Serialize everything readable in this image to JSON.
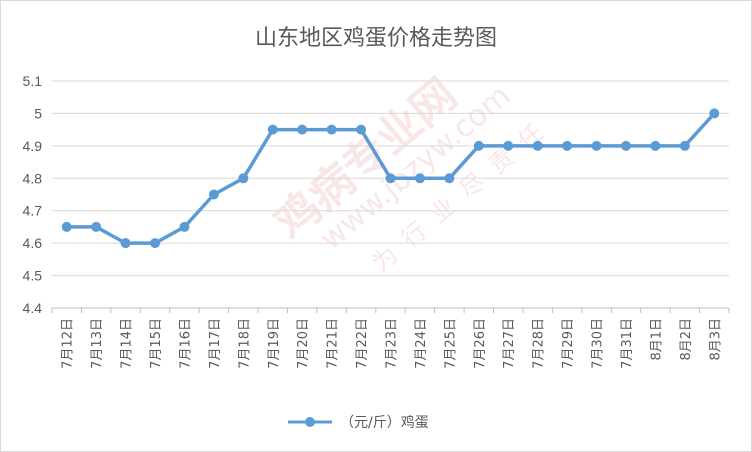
{
  "chart_data": {
    "type": "line",
    "title": "山东地区鸡蛋价格走势图",
    "categories": [
      "7月12日",
      "7月13日",
      "7月14日",
      "7月15日",
      "7月16日",
      "7月17日",
      "7月18日",
      "7月19日",
      "7月20日",
      "7月21日",
      "7月22日",
      "7月23日",
      "7月24日",
      "7月25日",
      "7月26日",
      "7月27日",
      "7月28日",
      "7月29日",
      "7月30日",
      "7月31日",
      "8月1日",
      "8月2日",
      "8月3日"
    ],
    "series": [
      {
        "name": "（元/斤）鸡蛋",
        "color": "#5b9bd5",
        "values": [
          4.65,
          4.65,
          4.6,
          4.6,
          4.65,
          4.75,
          4.8,
          4.95,
          4.95,
          4.95,
          4.95,
          4.8,
          4.8,
          4.8,
          4.9,
          4.9,
          4.9,
          4.9,
          4.9,
          4.9,
          4.9,
          4.9,
          5.0
        ]
      }
    ],
    "ylim": [
      4.4,
      5.1
    ],
    "yticks": [
      "4.4",
      "4.5",
      "4.6",
      "4.7",
      "4.8",
      "4.9",
      "5",
      "5.1"
    ],
    "grid": true,
    "legend_position": "bottom"
  },
  "watermark": {
    "lines": [
      "鸡病专业网",
      "www.jbzyw.com",
      "为行业尽责任"
    ],
    "color": "#e88a8a"
  }
}
